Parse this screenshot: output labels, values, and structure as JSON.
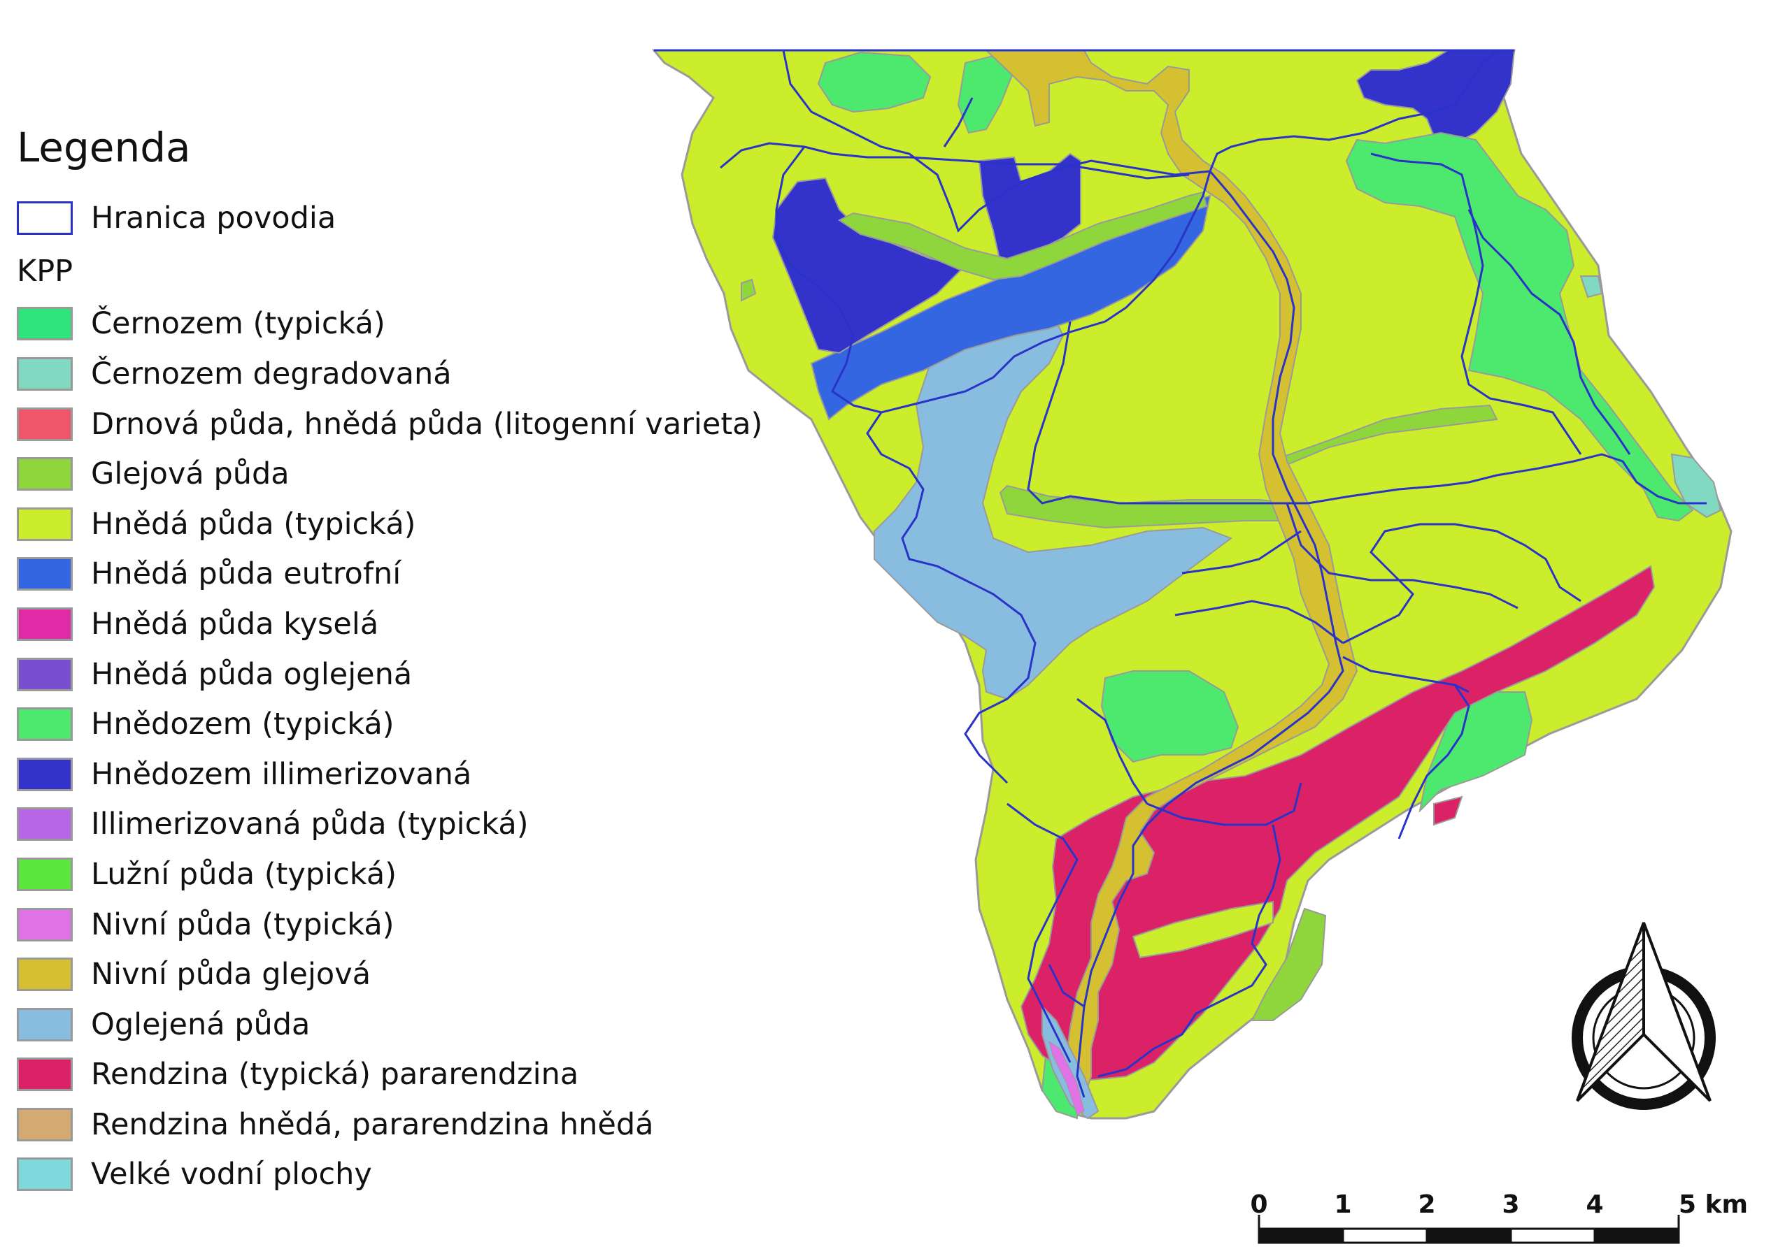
{
  "legend": {
    "title": "Legenda",
    "boundary_label": "Hranica povodia",
    "boundary_color": "#2a33c8",
    "group_heading": "KPP",
    "classes": [
      {
        "label": "Černozem (typická)",
        "color": "#2ee57d"
      },
      {
        "label": "Černozem degradovaná",
        "color": "#82d9c2"
      },
      {
        "label": "Drnová půda, hnědá půda (litogenní varieta)",
        "color": "#f0566a"
      },
      {
        "label": "Glejová půda",
        "color": "#8fd63c"
      },
      {
        "label": "Hnědá půda (typická)",
        "color": "#cbed2b"
      },
      {
        "label": "Hnědá půda eutrofní",
        "color": "#3366e0"
      },
      {
        "label": "Hnědá půda kyselá",
        "color": "#e12aa6"
      },
      {
        "label": "Hnědá půda oglejená",
        "color": "#7a4fcf"
      },
      {
        "label": "Hnědozem (typická)",
        "color": "#4de86e"
      },
      {
        "label": "Hnědozem illimerizovaná",
        "color": "#3333cc"
      },
      {
        "label": "Illimerizovaná půda (typická)",
        "color": "#b766e6"
      },
      {
        "label": "Lužní půda (typická)",
        "color": "#5ae63a"
      },
      {
        "label": "Nivní půda (typická)",
        "color": "#e172e6"
      },
      {
        "label": "Nivní půda glejová",
        "color": "#d4c030"
      },
      {
        "label": "Oglejená půda",
        "color": "#88bde0"
      },
      {
        "label": "Rendzina (typická) pararendzina",
        "color": "#dc2266"
      },
      {
        "label": "Rendzina hnědá, pararendzina hnědá",
        "color": "#d4aa72"
      },
      {
        "label": "Velké vodní plochy",
        "color": "#7fd8dc"
      }
    ]
  },
  "scale_bar": {
    "ticks": [
      "0",
      "1",
      "2",
      "3",
      "4",
      "5 km"
    ]
  },
  "north_arrow": {
    "icon": "north-arrow-icon"
  }
}
